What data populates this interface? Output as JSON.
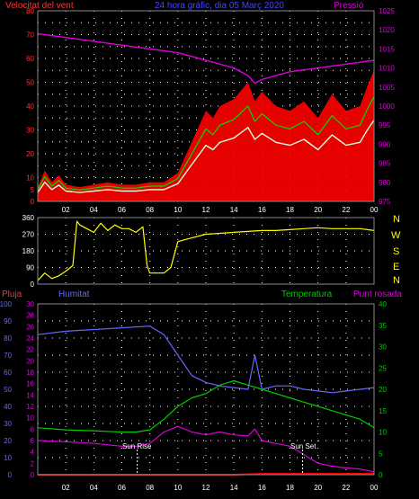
{
  "header": {
    "left_label": "Velocitat del vent",
    "center_label": "24 hora gràfic, dia 05 Març 2020",
    "right_label": "Pressió"
  },
  "colors": {
    "wind_gust": "#ff0000",
    "wind_avg": "#00dd00",
    "wind_low": "#ddffdd",
    "pressure": "#dd00dd",
    "direction": "#ffff00",
    "humidity": "#6666ff",
    "temperature": "#00cc00",
    "dewpoint": "#dd00dd",
    "rain": "#ff0000",
    "grid": "#ffffff",
    "frame": "#888888"
  },
  "compass": [
    "N",
    "W",
    "S",
    "E",
    "N"
  ],
  "x_ticks": [
    "02",
    "04",
    "06",
    "08",
    "10",
    "12",
    "14",
    "16",
    "18",
    "20",
    "22",
    "00"
  ],
  "bottom_labels": {
    "pluja": "Pluja",
    "humitat": "Humitat",
    "temperatura": "Temperatura",
    "punt_rosada": "Punt rosada",
    "sun_rise": "Sun Rise",
    "sun_set": "Sun Set"
  },
  "chart_data": [
    {
      "type": "line",
      "x_unit": "hour",
      "xlim": [
        0,
        24
      ],
      "ylim_left": [
        0,
        80
      ],
      "ylim_right": [
        975,
        1025
      ],
      "left_ticks": [
        0,
        5,
        10,
        15,
        20,
        25,
        30,
        35,
        40,
        45,
        50,
        55,
        60,
        65,
        70,
        75,
        80
      ],
      "right_ticks": [
        975,
        980,
        985,
        990,
        995,
        1000,
        1005,
        1010,
        1015,
        1020,
        1025
      ],
      "series": [
        {
          "name": "Velocitat del vent",
          "axis": "left",
          "x": [
            0,
            0.5,
            1,
            1.5,
            2,
            3,
            4,
            5,
            6,
            7,
            8,
            9,
            10,
            11,
            12,
            12.5,
            13,
            14,
            15,
            15.5,
            16,
            17,
            18,
            19,
            20,
            21,
            22,
            23,
            23.5,
            24
          ],
          "values": [
            6,
            13,
            8,
            11,
            7,
            6,
            7,
            8,
            7,
            7,
            8,
            8,
            12,
            25,
            38,
            35,
            40,
            43,
            50,
            42,
            46,
            40,
            38,
            42,
            35,
            45,
            38,
            40,
            48,
            55
          ]
        },
        {
          "name": "Pressió",
          "axis": "right",
          "x": [
            0,
            2,
            4,
            6,
            8,
            10,
            12,
            14,
            15,
            15.5,
            16,
            17,
            18,
            20,
            22,
            24
          ],
          "values": [
            1019,
            1018,
            1017,
            1016,
            1015,
            1014,
            1012,
            1010,
            1008,
            1006,
            1007,
            1008,
            1009,
            1010,
            1011,
            1012
          ]
        }
      ]
    },
    {
      "type": "line",
      "xlim": [
        0,
        24
      ],
      "ylim": [
        0,
        360
      ],
      "ticks": [
        0,
        90,
        180,
        270,
        360
      ],
      "series": [
        {
          "x": [
            0,
            0.5,
            1,
            1.5,
            2,
            2.5,
            2.8,
            3,
            3.5,
            4,
            4.5,
            5,
            5.5,
            6,
            6.5,
            7,
            7.5,
            7.8,
            8,
            8.5,
            9,
            9.5,
            10,
            11,
            12,
            13,
            14,
            15,
            16,
            17,
            18,
            19,
            20,
            21,
            22,
            23,
            24
          ],
          "values": [
            20,
            60,
            30,
            45,
            70,
            100,
            340,
            320,
            300,
            280,
            330,
            290,
            320,
            300,
            300,
            280,
            310,
            100,
            60,
            60,
            60,
            90,
            230,
            250,
            270,
            275,
            280,
            285,
            290,
            290,
            295,
            300,
            305,
            300,
            300,
            300,
            290
          ]
        }
      ]
    },
    {
      "type": "line",
      "xlim": [
        0,
        24
      ],
      "axes": {
        "pluja": {
          "ylim": [
            0,
            100
          ],
          "ticks": [
            0,
            10,
            20,
            30,
            40,
            50,
            60,
            70,
            80,
            90,
            100
          ]
        },
        "humitat": {
          "ylim": [
            0,
            30
          ],
          "ticks": [
            0,
            2,
            4,
            6,
            8,
            10,
            12,
            14,
            16,
            18,
            20,
            22,
            24,
            26,
            28,
            30
          ]
        },
        "temperatura": {
          "ylim": [
            0,
            40
          ],
          "ticks": [
            0,
            5,
            10,
            15,
            20,
            25,
            30,
            35,
            40
          ]
        }
      },
      "series": [
        {
          "name": "Humitat",
          "axis": "pluja",
          "x": [
            0,
            2,
            4,
            6,
            8,
            9,
            10,
            11,
            12,
            13,
            14,
            15,
            15.5,
            16,
            17,
            18,
            19,
            20,
            21,
            22,
            23,
            24
          ],
          "values": [
            82,
            84,
            85,
            86,
            87,
            82,
            70,
            58,
            54,
            52,
            51,
            50,
            70,
            50,
            52,
            52,
            50,
            49,
            48,
            49,
            50,
            51
          ]
        },
        {
          "name": "Temperatura",
          "axis": "temperatura",
          "x": [
            0,
            2,
            4,
            6,
            7,
            8,
            9,
            10,
            11,
            12,
            13,
            14,
            15,
            16,
            17,
            18,
            19,
            20,
            21,
            22,
            23,
            24
          ],
          "values": [
            11,
            10.5,
            10.3,
            10,
            10,
            10.5,
            13,
            16,
            18,
            19,
            21,
            22,
            21,
            20,
            19,
            18,
            17,
            16,
            15,
            14,
            13,
            11
          ]
        },
        {
          "name": "Punt rosada",
          "axis": "humitat",
          "x": [
            0,
            2,
            4,
            6,
            7,
            8,
            9,
            10,
            11,
            12,
            13,
            14,
            15,
            15.5,
            16,
            17,
            18,
            19,
            20,
            21,
            22,
            23,
            24
          ],
          "values": [
            6,
            5.8,
            5.5,
            5,
            5,
            5.5,
            7.5,
            8.5,
            7.5,
            7,
            7.5,
            7,
            6.8,
            8,
            6,
            5.5,
            5,
            3.5,
            2,
            1.5,
            1.2,
            1,
            0.5
          ]
        },
        {
          "name": "Pluja",
          "axis": "pluja",
          "x": [
            0,
            14,
            16,
            24
          ],
          "values": [
            0,
            0,
            0.5,
            0.5
          ]
        }
      ],
      "annotations": [
        {
          "text": "Sun Rise",
          "x": 7.1
        },
        {
          "text": "Sun Set",
          "x": 18.9
        }
      ]
    }
  ]
}
